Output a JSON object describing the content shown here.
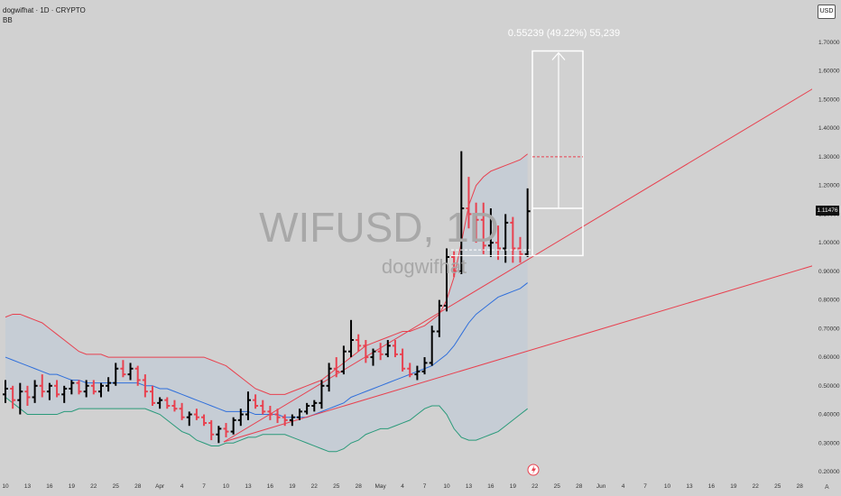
{
  "header": {
    "symbol_line": "dogwifhat · 1D · CRYPTO",
    "indicator": "BB"
  },
  "currency_button": "USD",
  "watermark": {
    "symbol": "WIFUSD, 1D",
    "name": "dogwifhat"
  },
  "measure_label": "0.55239 (49.22%) 55,239",
  "last_price": "1.11476",
  "auto_label": "A",
  "chart_data": {
    "type": "ohlc",
    "title": "dogwifhat · 1D · CRYPTO",
    "price_axis_ticks": [
      "1.70000",
      "1.60000",
      "1.50000",
      "1.40000",
      "1.30000",
      "1.20000",
      "1.10000",
      "1.00000",
      "0.90000",
      "0.80000",
      "0.70000",
      "0.60000",
      "0.50000",
      "0.40000",
      "0.30000",
      "0.20000"
    ],
    "time_axis_ticks": [
      "10",
      "13",
      "16",
      "19",
      "22",
      "25",
      "28",
      "Apr",
      "4",
      "7",
      "10",
      "13",
      "16",
      "19",
      "22",
      "25",
      "28",
      "May",
      "4",
      "7",
      "10",
      "13",
      "16",
      "19",
      "22",
      "25",
      "28",
      "Jun",
      "4",
      "7",
      "10",
      "13",
      "16",
      "19",
      "22",
      "25",
      "28"
    ],
    "ylim": [
      0.2,
      1.75
    ],
    "up_color": "#000000",
    "down_color": "#e8414f",
    "bars": [
      [
        0.47,
        0.52,
        0.44,
        0.49
      ],
      [
        0.49,
        0.5,
        0.42,
        0.45
      ],
      [
        0.45,
        0.51,
        0.4,
        0.48
      ],
      [
        0.48,
        0.5,
        0.43,
        0.46
      ],
      [
        0.46,
        0.52,
        0.44,
        0.5
      ],
      [
        0.5,
        0.54,
        0.46,
        0.48
      ],
      [
        0.48,
        0.51,
        0.45,
        0.5
      ],
      [
        0.5,
        0.52,
        0.46,
        0.47
      ],
      [
        0.47,
        0.5,
        0.44,
        0.49
      ],
      [
        0.49,
        0.52,
        0.47,
        0.51
      ],
      [
        0.51,
        0.52,
        0.47,
        0.48
      ],
      [
        0.48,
        0.52,
        0.46,
        0.5
      ],
      [
        0.5,
        0.52,
        0.47,
        0.48
      ],
      [
        0.48,
        0.51,
        0.46,
        0.5
      ],
      [
        0.5,
        0.53,
        0.48,
        0.51
      ],
      [
        0.51,
        0.58,
        0.5,
        0.56
      ],
      [
        0.56,
        0.59,
        0.53,
        0.54
      ],
      [
        0.54,
        0.58,
        0.52,
        0.56
      ],
      [
        0.56,
        0.57,
        0.5,
        0.52
      ],
      [
        0.52,
        0.54,
        0.46,
        0.48
      ],
      [
        0.48,
        0.5,
        0.43,
        0.44
      ],
      [
        0.44,
        0.46,
        0.42,
        0.45
      ],
      [
        0.45,
        0.46,
        0.42,
        0.43
      ],
      [
        0.43,
        0.45,
        0.41,
        0.42
      ],
      [
        0.42,
        0.44,
        0.38,
        0.39
      ],
      [
        0.39,
        0.41,
        0.36,
        0.4
      ],
      [
        0.4,
        0.42,
        0.38,
        0.39
      ],
      [
        0.39,
        0.4,
        0.36,
        0.37
      ],
      [
        0.37,
        0.38,
        0.31,
        0.33
      ],
      [
        0.33,
        0.36,
        0.3,
        0.35
      ],
      [
        0.35,
        0.37,
        0.32,
        0.34
      ],
      [
        0.34,
        0.39,
        0.33,
        0.38
      ],
      [
        0.38,
        0.42,
        0.36,
        0.4
      ],
      [
        0.4,
        0.48,
        0.38,
        0.45
      ],
      [
        0.45,
        0.47,
        0.42,
        0.43
      ],
      [
        0.43,
        0.45,
        0.4,
        0.41
      ],
      [
        0.41,
        0.43,
        0.38,
        0.4
      ],
      [
        0.4,
        0.42,
        0.37,
        0.39
      ],
      [
        0.39,
        0.4,
        0.36,
        0.38
      ],
      [
        0.38,
        0.4,
        0.36,
        0.39
      ],
      [
        0.39,
        0.42,
        0.38,
        0.41
      ],
      [
        0.41,
        0.44,
        0.4,
        0.43
      ],
      [
        0.43,
        0.45,
        0.41,
        0.44
      ],
      [
        0.44,
        0.52,
        0.42,
        0.5
      ],
      [
        0.5,
        0.58,
        0.48,
        0.56
      ],
      [
        0.56,
        0.6,
        0.53,
        0.55
      ],
      [
        0.55,
        0.64,
        0.54,
        0.62
      ],
      [
        0.62,
        0.73,
        0.6,
        0.66
      ],
      [
        0.66,
        0.68,
        0.62,
        0.64
      ],
      [
        0.64,
        0.66,
        0.58,
        0.6
      ],
      [
        0.6,
        0.63,
        0.57,
        0.62
      ],
      [
        0.62,
        0.65,
        0.59,
        0.61
      ],
      [
        0.61,
        0.66,
        0.6,
        0.64
      ],
      [
        0.64,
        0.66,
        0.6,
        0.61
      ],
      [
        0.61,
        0.63,
        0.55,
        0.56
      ],
      [
        0.56,
        0.58,
        0.53,
        0.54
      ],
      [
        0.54,
        0.57,
        0.52,
        0.55
      ],
      [
        0.55,
        0.6,
        0.54,
        0.58
      ],
      [
        0.58,
        0.71,
        0.57,
        0.69
      ],
      [
        0.69,
        0.8,
        0.67,
        0.78
      ],
      [
        0.78,
        0.98,
        0.76,
        0.95
      ],
      [
        0.95,
        0.97,
        0.88,
        0.9
      ],
      [
        0.9,
        1.32,
        0.89,
        1.12
      ],
      [
        1.12,
        1.23,
        1.05,
        1.1
      ],
      [
        1.1,
        1.14,
        1.0,
        1.08
      ],
      [
        1.08,
        1.14,
        0.96,
        0.99
      ],
      [
        0.99,
        1.12,
        0.95,
        1.0
      ],
      [
        1.0,
        1.06,
        0.94,
        0.98
      ],
      [
        0.98,
        1.1,
        0.93,
        1.07
      ],
      [
        1.07,
        1.09,
        0.93,
        0.98
      ],
      [
        0.98,
        1.02,
        0.93,
        0.96
      ],
      [
        0.96,
        1.19,
        0.95,
        1.11
      ]
    ],
    "bb_upper": [
      0.74,
      0.75,
      0.75,
      0.74,
      0.73,
      0.72,
      0.7,
      0.68,
      0.66,
      0.64,
      0.62,
      0.61,
      0.61,
      0.61,
      0.6,
      0.6,
      0.6,
      0.6,
      0.6,
      0.6,
      0.6,
      0.6,
      0.6,
      0.6,
      0.6,
      0.6,
      0.6,
      0.6,
      0.59,
      0.58,
      0.57,
      0.55,
      0.53,
      0.51,
      0.49,
      0.48,
      0.47,
      0.47,
      0.47,
      0.48,
      0.49,
      0.5,
      0.51,
      0.52,
      0.54,
      0.56,
      0.58,
      0.6,
      0.62,
      0.64,
      0.65,
      0.66,
      0.67,
      0.68,
      0.69,
      0.69,
      0.7,
      0.71,
      0.73,
      0.75,
      0.8,
      0.88,
      1.0,
      1.13,
      1.2,
      1.23,
      1.25,
      1.26,
      1.27,
      1.28,
      1.29,
      1.31
    ],
    "bb_basis": [
      0.6,
      0.59,
      0.58,
      0.57,
      0.56,
      0.55,
      0.54,
      0.54,
      0.53,
      0.52,
      0.52,
      0.51,
      0.51,
      0.51,
      0.51,
      0.51,
      0.51,
      0.51,
      0.51,
      0.5,
      0.5,
      0.49,
      0.49,
      0.48,
      0.47,
      0.46,
      0.45,
      0.44,
      0.43,
      0.42,
      0.41,
      0.41,
      0.41,
      0.41,
      0.4,
      0.4,
      0.4,
      0.4,
      0.39,
      0.39,
      0.39,
      0.39,
      0.4,
      0.41,
      0.42,
      0.43,
      0.44,
      0.46,
      0.47,
      0.48,
      0.49,
      0.5,
      0.51,
      0.52,
      0.53,
      0.54,
      0.55,
      0.56,
      0.57,
      0.59,
      0.61,
      0.64,
      0.68,
      0.72,
      0.75,
      0.77,
      0.79,
      0.81,
      0.82,
      0.83,
      0.84,
      0.86
    ],
    "bb_lower": [
      0.46,
      0.44,
      0.42,
      0.4,
      0.4,
      0.4,
      0.4,
      0.4,
      0.41,
      0.41,
      0.42,
      0.42,
      0.42,
      0.42,
      0.42,
      0.42,
      0.42,
      0.42,
      0.42,
      0.42,
      0.41,
      0.4,
      0.38,
      0.36,
      0.34,
      0.33,
      0.31,
      0.3,
      0.29,
      0.29,
      0.3,
      0.3,
      0.31,
      0.32,
      0.32,
      0.33,
      0.33,
      0.33,
      0.33,
      0.32,
      0.31,
      0.3,
      0.29,
      0.28,
      0.27,
      0.27,
      0.28,
      0.3,
      0.31,
      0.33,
      0.34,
      0.35,
      0.35,
      0.36,
      0.37,
      0.38,
      0.4,
      0.42,
      0.43,
      0.43,
      0.4,
      0.35,
      0.32,
      0.31,
      0.31,
      0.32,
      0.33,
      0.34,
      0.36,
      0.38,
      0.4,
      0.42
    ],
    "trendlines": [
      {
        "color": "#e8414f",
        "from": [
          28,
          0.31
        ],
        "to": [
          "right",
          1.54
        ]
      },
      {
        "color": "#e8414f",
        "from": [
          0,
          0.31
        ],
        "to": [
          0,
          0.31
        ],
        "anchor": "lower"
      }
    ],
    "measure": {
      "low": 0.955,
      "high": 1.67,
      "entry": 1.12,
      "target_dashed": 1.3
    },
    "series": [
      {
        "name": "BB",
        "values": []
      }
    ]
  }
}
